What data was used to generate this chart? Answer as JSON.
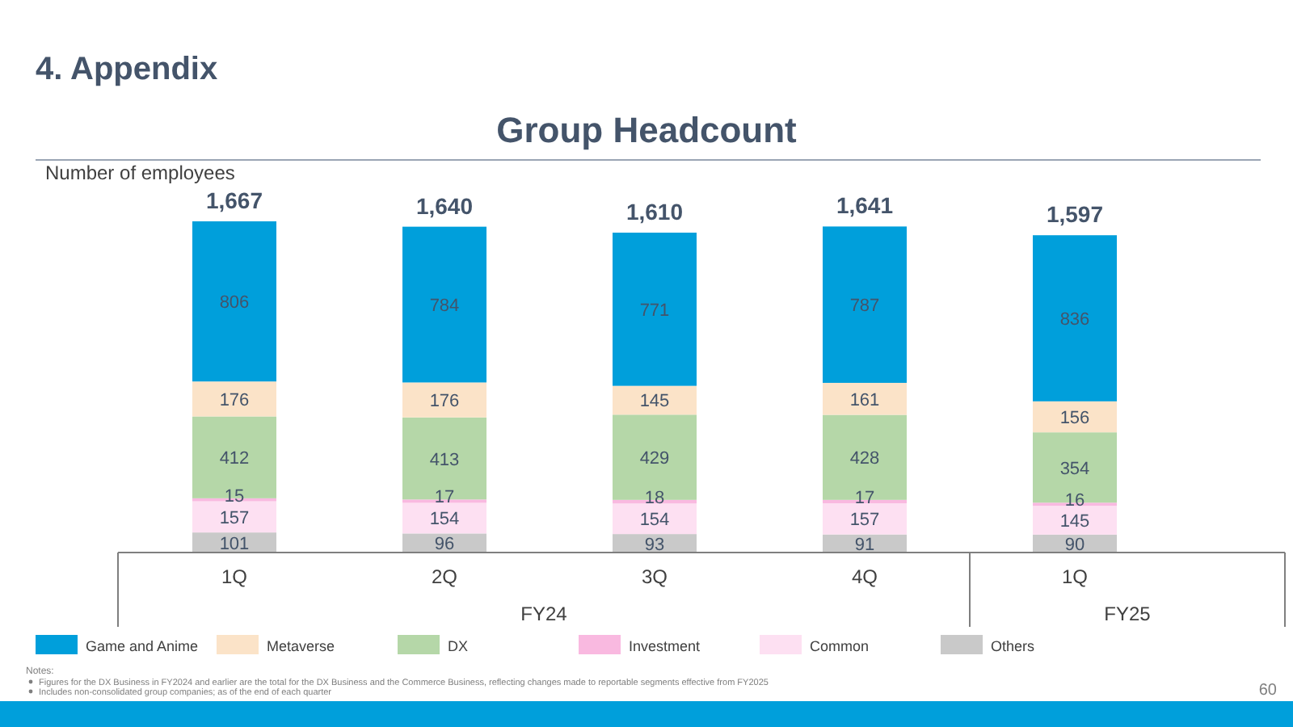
{
  "chart_data": {
    "type": "bar",
    "title": "Group Headcount",
    "ylabel": "Number of employees",
    "categories": [
      "1Q",
      "2Q",
      "3Q",
      "4Q",
      "1Q"
    ],
    "stacked": true,
    "data_labels": true,
    "legend": "bottom",
    "series": [
      {
        "name": "Others",
        "color": "#c9c9c9",
        "values": [
          101,
          96,
          93,
          91,
          90
        ]
      },
      {
        "name": "Common",
        "color": "#fde0f2",
        "values": [
          157,
          154,
          154,
          157,
          145
        ]
      },
      {
        "name": "Investment",
        "color": "#f9b9e0",
        "values": [
          15,
          17,
          18,
          17,
          16
        ]
      },
      {
        "name": "DX",
        "color": "#b5d7a8",
        "values": [
          412,
          413,
          429,
          428,
          354
        ]
      },
      {
        "name": "Metaverse",
        "color": "#fbe3c8",
        "values": [
          176,
          176,
          145,
          161,
          156
        ]
      },
      {
        "name": "Game and Anime",
        "color": "#009fdb",
        "values": [
          806,
          784,
          771,
          787,
          836
        ]
      }
    ],
    "totals": [
      "1,667",
      "1,640",
      "1,610",
      "1,641",
      "1,597"
    ],
    "annotations": [
      "4. Appendix",
      "FY24",
      "FY25",
      "Notes:",
      "Figures for the DX Business in FY2024 and earlier are the total for the DX Business and the Commerce Business, reflecting changes made to reportable segments effective from FY2025",
      "Includes non-consolidated group companies; as of the end of each quarter",
      "60"
    ]
  }
}
